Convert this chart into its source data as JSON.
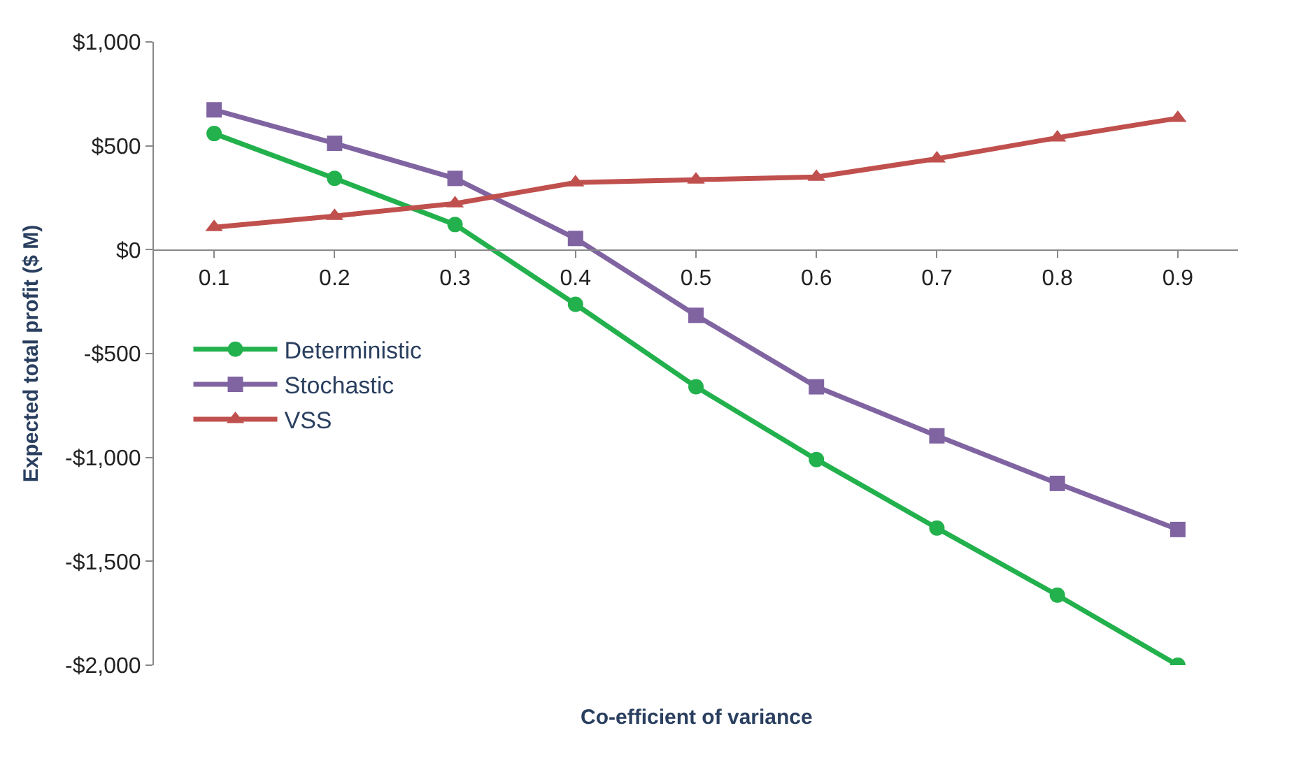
{
  "chart_data": {
    "type": "line",
    "xlabel": "Co-efficient of variance",
    "ylabel": "Expected total profit ($ M)",
    "categories": [
      "0.1",
      "0.2",
      "0.3",
      "0.4",
      "0.5",
      "0.6",
      "0.7",
      "0.8",
      "0.9"
    ],
    "series": [
      {
        "name": "Deterministic",
        "color": "#22b14c",
        "marker": "circle",
        "values": [
          559,
          343,
          121,
          -263,
          -660,
          -1010,
          -1340,
          -1663,
          -2000
        ]
      },
      {
        "name": "Stochastic",
        "color": "#8064a2",
        "marker": "square",
        "values": [
          673,
          512,
          343,
          54,
          -316,
          -660,
          -896,
          -1125,
          -1347
        ]
      },
      {
        "name": "VSS",
        "color": "#c0504d",
        "marker": "triangle",
        "values": [
          108,
          162,
          222,
          323,
          337,
          350,
          438,
          539,
          633
        ]
      }
    ],
    "ylim": [
      -2000,
      1000
    ],
    "yticks": [
      {
        "value": -2000,
        "label": "-$2,000"
      },
      {
        "value": -1500,
        "label": "-$1,500"
      },
      {
        "value": -1000,
        "label": "-$1,000"
      },
      {
        "value": -500,
        "label": "-$500"
      },
      {
        "value": 0,
        "label": "$0"
      },
      {
        "value": 500,
        "label": "$500"
      },
      {
        "value": 1000,
        "label": "$1,000"
      }
    ],
    "legend": "left",
    "line_style": "solid"
  }
}
